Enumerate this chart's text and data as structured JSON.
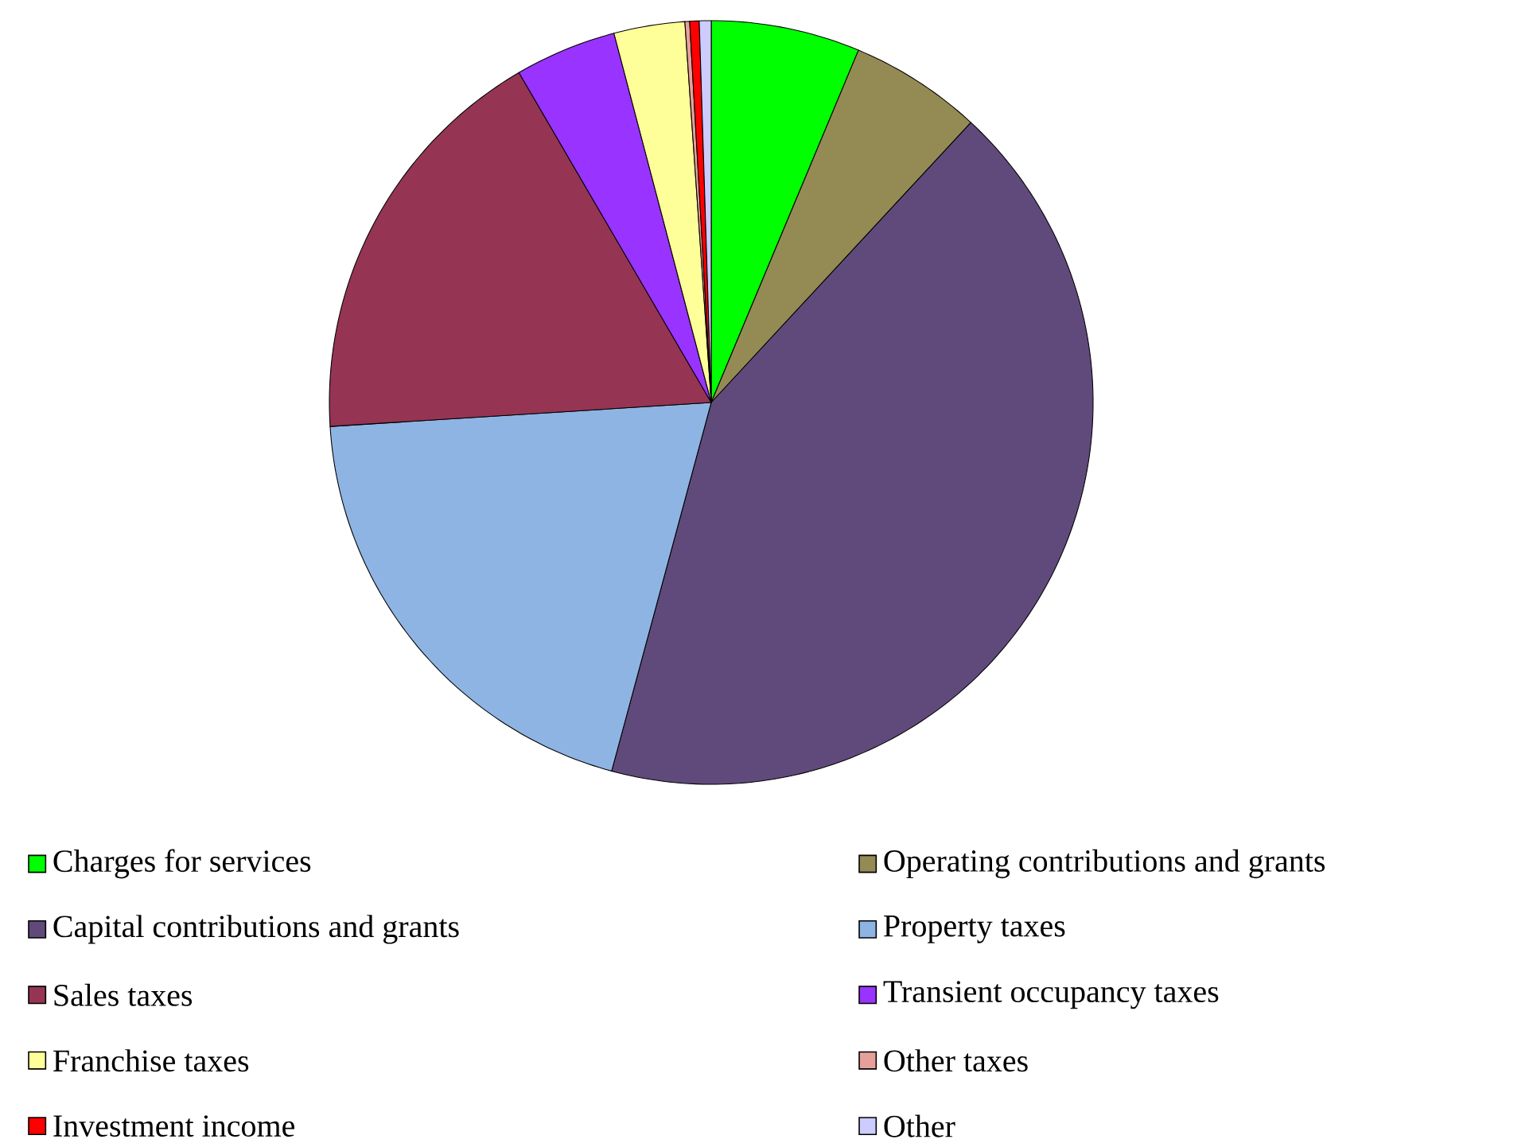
{
  "chart_data": {
    "type": "pie",
    "legend": "bottom",
    "categories": [
      "Charges for services",
      "Operating contributions and grants",
      "Capital contributions and grants",
      "Property taxes",
      "Sales taxes",
      "Transient occupancy taxes",
      "Franchise taxes",
      "Other taxes",
      "Investment income",
      "Other"
    ],
    "values": [
      6.3,
      5.6,
      42.3,
      19.8,
      17.6,
      4.3,
      3.0,
      0.2,
      0.4,
      0.5
    ],
    "colors": [
      "#00ff00",
      "#948a54",
      "#604a7b",
      "#8eb4e3",
      "#953553",
      "#9933ff",
      "#ffff99",
      "#e6a09a",
      "#ff0000",
      "#ccccff"
    ]
  }
}
